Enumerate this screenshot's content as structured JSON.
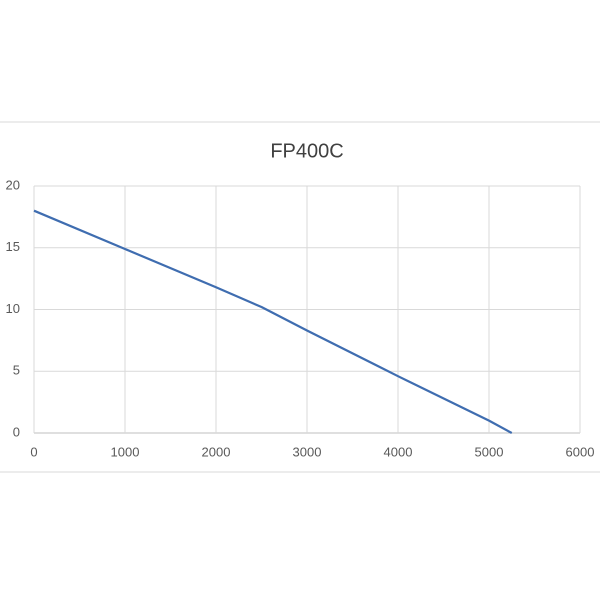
{
  "chart_data": {
    "type": "line",
    "title": "FP400C",
    "x": [
      0,
      1000,
      2000,
      2500,
      3000,
      4000,
      5000,
      5250
    ],
    "series": [
      {
        "color": "#3f6db0",
        "values": [
          18,
          14.9,
          11.8,
          10.2,
          8.3,
          4.6,
          1.0,
          0
        ]
      }
    ],
    "xlim": [
      0,
      6000
    ],
    "xticks": [
      0,
      1000,
      2000,
      3000,
      4000,
      5000,
      6000
    ],
    "ylim": [
      0,
      20
    ],
    "yticks": [
      0,
      5,
      10,
      15,
      20
    ],
    "grid": true
  }
}
